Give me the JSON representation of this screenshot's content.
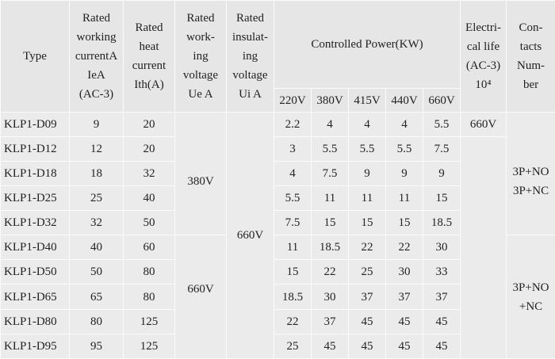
{
  "table": {
    "headers": [
      "Type",
      "Rated\nworking\ncurrentA\nIeA\n(AC-3)",
      "Rated\nheat\ncurrent\nIth(A)",
      "Rated\nwork-\ning\nvoltage\nUe A",
      "Rated\ninsulat-\ning\nvoltage\nUi A"
    ],
    "power_header": "Controlled Power(KW)",
    "voltages": [
      "220V",
      "380V",
      "415V",
      "440V",
      "660V"
    ],
    "life_header": "Electri-\ncal life\n(AC-3)\n10⁴",
    "contacts_header": "Con-\ntacts\nNum-\nber",
    "rows": [
      [
        "KLP1-D09",
        "9",
        "20",
        "2.2",
        "4",
        "4",
        "4",
        "5.5"
      ],
      [
        "KLP1-D12",
        "12",
        "20",
        "3",
        "5.5",
        "5.5",
        "5.5",
        "7.5"
      ],
      [
        "KLP1-D18",
        "18",
        "32",
        "4",
        "7.5",
        "9",
        "9",
        "9"
      ],
      [
        "KLP1-D25",
        "25",
        "40",
        "5.5",
        "11",
        "11",
        "11",
        "15"
      ],
      [
        "KLP1-D32",
        "32",
        "50",
        "7.5",
        "15",
        "15",
        "15",
        "18.5"
      ],
      [
        "KLP1-D40",
        "40",
        "60",
        "11",
        "18.5",
        "22",
        "22",
        "30"
      ],
      [
        "KLP1-D50",
        "50",
        "80",
        "15",
        "22",
        "25",
        "30",
        "33"
      ],
      [
        "KLP1-D65",
        "65",
        "80",
        "18.5",
        "30",
        "37",
        "37",
        "37"
      ],
      [
        "KLP1-D80",
        "80",
        "125",
        "22",
        "37",
        "45",
        "45",
        "45"
      ],
      [
        "KLP1-D95",
        "95",
        "125",
        "25",
        "45",
        "45",
        "45",
        "45"
      ]
    ],
    "ue_groups": [
      "380V",
      "660V"
    ],
    "ui": "660V",
    "life": "660V",
    "contacts_groups": [
      "3P+NO\n3P+NC",
      "3P+NO\n+NC"
    ]
  }
}
